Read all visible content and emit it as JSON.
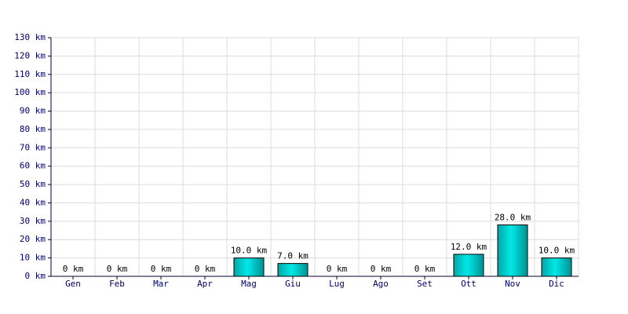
{
  "chart_data": {
    "type": "bar",
    "categories": [
      "Gen",
      "Feb",
      "Mar",
      "Apr",
      "Mag",
      "Giu",
      "Lug",
      "Ago",
      "Set",
      "Ott",
      "Nov",
      "Dic"
    ],
    "values": [
      0,
      0,
      0,
      0,
      10,
      7,
      0,
      0,
      0,
      12,
      28,
      10
    ],
    "value_labels": [
      "0 km",
      "0 km",
      "0 km",
      "0 km",
      "10.0 km",
      "7.0 km",
      "0 km",
      "0 km",
      "0 km",
      "12.0 km",
      "28.0 km",
      "10.0 km"
    ],
    "color": "#00e8e8",
    "ylim": [
      0,
      130
    ],
    "yticks": [
      {
        "value": 0,
        "label": "0 km"
      },
      {
        "value": 10,
        "label": "10 km"
      },
      {
        "value": 20,
        "label": "20 km"
      },
      {
        "value": 30,
        "label": "30 km"
      },
      {
        "value": 40,
        "label": "40 km"
      },
      {
        "value": 50,
        "label": "50 km"
      },
      {
        "value": 60,
        "label": "60 km"
      },
      {
        "value": 70,
        "label": "70 km"
      },
      {
        "value": 80,
        "label": "80 km"
      },
      {
        "value": 90,
        "label": "90 km"
      },
      {
        "value": 100,
        "label": "100 km"
      },
      {
        "value": 110,
        "label": "110 km"
      },
      {
        "value": 120,
        "label": "120 km"
      },
      {
        "value": 130,
        "label": "130 km"
      }
    ],
    "grid": true
  }
}
